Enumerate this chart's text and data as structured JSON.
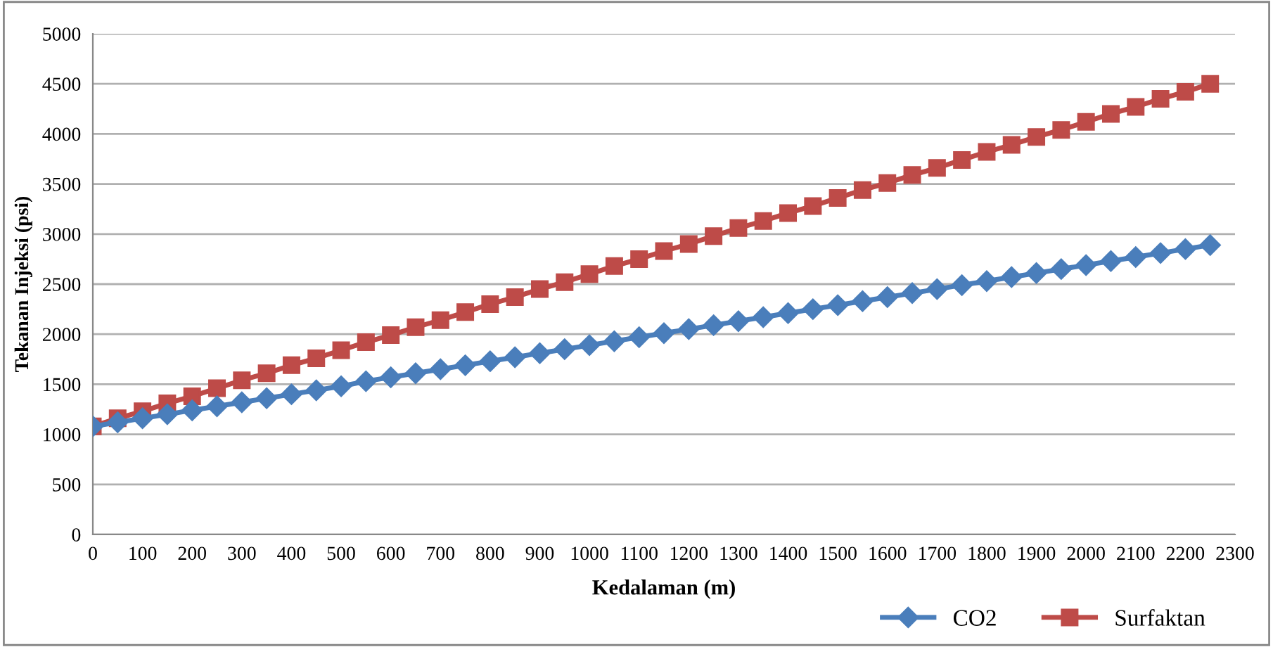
{
  "chart_data": {
    "type": "line",
    "xlabel": "Kedalaman (m)",
    "ylabel": "Tekanan Injeksi (psi)",
    "x": [
      0,
      50,
      100,
      150,
      200,
      250,
      300,
      350,
      400,
      450,
      500,
      550,
      600,
      650,
      700,
      750,
      800,
      850,
      900,
      950,
      1000,
      1050,
      1100,
      1150,
      1200,
      1250,
      1300,
      1350,
      1400,
      1450,
      1500,
      1550,
      1600,
      1650,
      1700,
      1750,
      1800,
      1850,
      1900,
      1950,
      2000,
      2050,
      2100,
      2150,
      2200,
      2250
    ],
    "series": [
      {
        "name": "CO2",
        "color": "#4a7ebb",
        "marker": "diamond",
        "values": [
          1080,
          1120,
          1160,
          1200,
          1240,
          1280,
          1320,
          1360,
          1400,
          1440,
          1480,
          1530,
          1570,
          1610,
          1650,
          1690,
          1730,
          1770,
          1810,
          1850,
          1890,
          1930,
          1970,
          2010,
          2050,
          2090,
          2130,
          2170,
          2210,
          2250,
          2290,
          2330,
          2370,
          2410,
          2450,
          2490,
          2530,
          2570,
          2610,
          2650,
          2690,
          2730,
          2770,
          2810,
          2850,
          2890
        ]
      },
      {
        "name": "Surfaktan",
        "color": "#be4b48",
        "marker": "square",
        "values": [
          1080,
          1160,
          1230,
          1310,
          1380,
          1460,
          1540,
          1610,
          1690,
          1760,
          1840,
          1920,
          1990,
          2070,
          2140,
          2220,
          2300,
          2370,
          2450,
          2520,
          2600,
          2680,
          2750,
          2830,
          2900,
          2980,
          3060,
          3130,
          3210,
          3280,
          3360,
          3440,
          3510,
          3590,
          3660,
          3740,
          3820,
          3890,
          3970,
          4040,
          4120,
          4200,
          4270,
          4350,
          4420,
          4500
        ]
      }
    ],
    "xlim": [
      0,
      2300
    ],
    "xticks": [
      0,
      100,
      200,
      300,
      400,
      500,
      600,
      700,
      800,
      900,
      1000,
      1100,
      1200,
      1300,
      1400,
      1500,
      1600,
      1700,
      1800,
      1900,
      2000,
      2100,
      2200,
      2300
    ],
    "ylim": [
      0,
      5000
    ],
    "yticks": [
      0,
      500,
      1000,
      1500,
      2000,
      2500,
      3000,
      3500,
      4000,
      4500,
      5000
    ],
    "grid": "y",
    "legend": "bottom right",
    "line_style": "solid"
  }
}
